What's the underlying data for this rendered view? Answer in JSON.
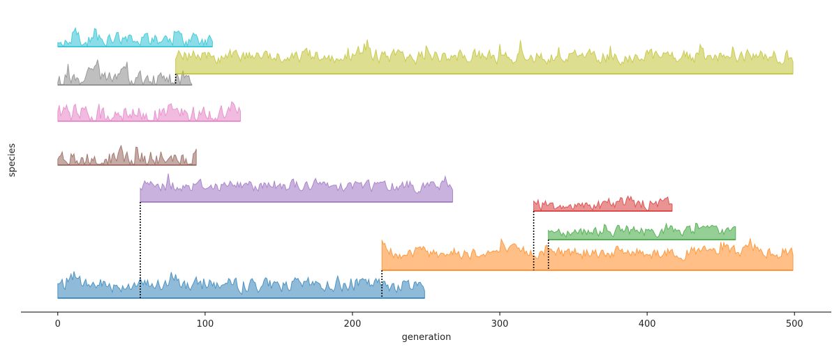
{
  "chart_data": {
    "type": "area",
    "subtype": "species-lineage-ridgeline",
    "xlabel": "generation",
    "ylabel": "species",
    "xlim": [
      -25,
      525
    ],
    "xticks": [
      0,
      100,
      200,
      300,
      400,
      500
    ],
    "grid": false,
    "legend": "none",
    "series": [
      {
        "color": "#1f77b4",
        "start": 0,
        "end": 249,
        "lane": 0,
        "level": 0.4,
        "variability": 0.4
      },
      {
        "color": "#ff7f0e",
        "start": 220,
        "end": 499,
        "lane": 1,
        "level": 0.45,
        "variability": 0.3,
        "parent_generation": 220
      },
      {
        "color": "#2ca02c",
        "start": 333,
        "end": 460,
        "lane": 2,
        "level": 0.35,
        "variability": 0.4,
        "parent_generation": 333
      },
      {
        "color": "#d62728",
        "start": 323,
        "end": 417,
        "lane": 3,
        "level": 0.3,
        "variability": 0.55,
        "parent_generation": 323
      },
      {
        "color": "#9467bd",
        "start": 56,
        "end": 268,
        "lane": 4,
        "level": 0.5,
        "variability": 0.35,
        "parent_generation": 56
      },
      {
        "color": "#8c564b",
        "start": 0,
        "end": 94,
        "lane": 5,
        "level": 0.1,
        "variability": 0.5
      },
      {
        "color": "#e377c2",
        "start": 0,
        "end": 124,
        "lane": 6,
        "level": 0.2,
        "variability": 0.6
      },
      {
        "color": "#7f7f7f",
        "start": 0,
        "end": 91,
        "lane": 7,
        "level": 0.2,
        "variability": 0.55
      },
      {
        "color": "#bcbd22",
        "start": 80,
        "end": 499,
        "lane": 8,
        "level": 0.4,
        "variability": 0.3,
        "parent_generation": 80
      },
      {
        "color": "#17becf",
        "start": 0,
        "end": 105,
        "lane": 9,
        "level": 0.25,
        "variability": 0.5
      }
    ]
  }
}
